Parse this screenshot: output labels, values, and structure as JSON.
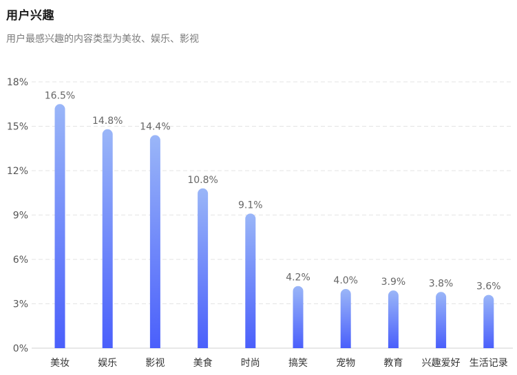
{
  "header": {
    "title": "用户兴趣",
    "subtitle": "用户最感兴趣的内容类型为美妆、娱乐、影视"
  },
  "chart_data": {
    "type": "bar",
    "categories": [
      "美妆",
      "娱乐",
      "影视",
      "美食",
      "时尚",
      "搞笑",
      "宠物",
      "教育",
      "兴趣爱好",
      "生活记录"
    ],
    "values": [
      16.5,
      14.8,
      14.4,
      10.8,
      9.1,
      4.2,
      4.0,
      3.9,
      3.8,
      3.6
    ],
    "data_labels": [
      "16.5%",
      "14.8%",
      "14.4%",
      "10.8%",
      "9.1%",
      "4.2%",
      "4.0%",
      "3.9%",
      "3.8%",
      "3.6%"
    ],
    "yticks": [
      0,
      3,
      6,
      9,
      12,
      15,
      18
    ],
    "ytick_labels": [
      "0%",
      "3%",
      "6%",
      "9%",
      "12%",
      "15%",
      "18%"
    ],
    "ylim": [
      0,
      18
    ],
    "grid": true,
    "bar_gradient": [
      "#9ab6f8",
      "#4a5ffb"
    ],
    "grid_color": "#e3e3e3"
  }
}
